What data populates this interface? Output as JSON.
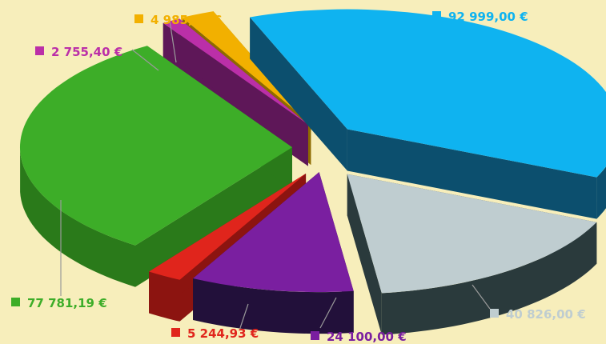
{
  "chart_data": {
    "type": "pie",
    "title": "",
    "legend": "inline-labels",
    "series": [
      {
        "label": "92 999,00 €",
        "value": 92999.0,
        "color": "#0fb3f0",
        "side": "#0c4f6e"
      },
      {
        "label": "40 826,00 €",
        "value": 40826.0,
        "color": "#bfcdd0",
        "side": "#2a3a3c"
      },
      {
        "label": "24 100,00 €",
        "value": 24100.0,
        "color": "#7a1fa0",
        "side": "#22103a"
      },
      {
        "label": "5 244,93 €",
        "value": 5244.93,
        "color": "#e0251c",
        "side": "#8c1410"
      },
      {
        "label": "77 781,19 €",
        "value": 77781.19,
        "color": "#3dad28",
        "side": "#2a7a1a"
      },
      {
        "label": "2 755,40 €",
        "value": 2755.4,
        "color": "#bb2fa8",
        "side": "#5e1758"
      },
      {
        "label": "4 985,00 €",
        "value": 4985.0,
        "color": "#f2b000",
        "side": "#8e6a00"
      }
    ]
  }
}
